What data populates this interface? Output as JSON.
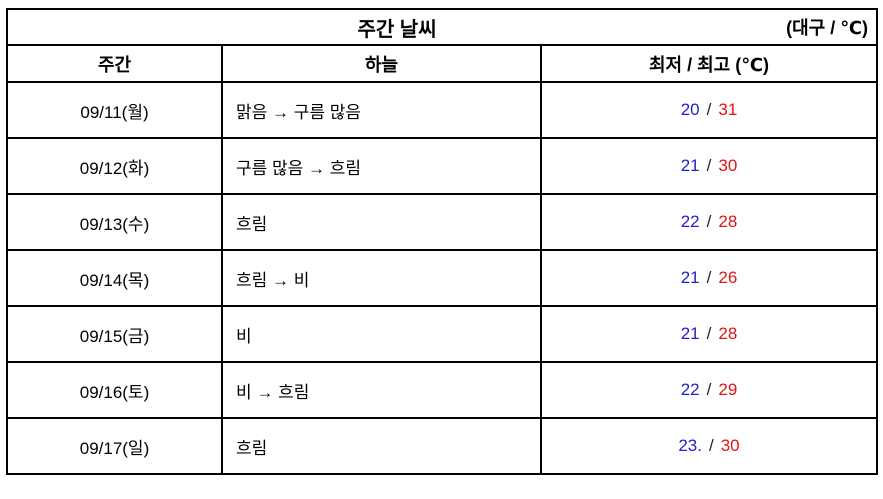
{
  "title_bar": {
    "title": "주간 날씨",
    "location_unit": "(대구 / ℃)"
  },
  "table": {
    "headers": [
      "주간",
      "하늘",
      "최저 / 최고 (℃)"
    ],
    "temp_separator": "/",
    "rows": [
      {
        "date": "09/11(월)",
        "sky": "맑음 → 구름 많음",
        "low": "20",
        "high": "31"
      },
      {
        "date": "09/12(화)",
        "sky": "구름 많음 → 흐림",
        "low": "21",
        "high": "30"
      },
      {
        "date": "09/13(수)",
        "sky": "흐림",
        "low": "22",
        "high": "28"
      },
      {
        "date": "09/14(목)",
        "sky": "흐림 → 비",
        "low": "21",
        "high": "26"
      },
      {
        "date": "09/15(금)",
        "sky": "비",
        "low": "21",
        "high": "28"
      },
      {
        "date": "09/16(토)",
        "sky": "비 → 흐림",
        "low": "22",
        "high": "29"
      },
      {
        "date": "09/17(일)",
        "sky": "흐림",
        "low": "23.",
        "high": "30"
      }
    ]
  },
  "colors": {
    "low": "#1f1fcb",
    "high": "#e11414",
    "separator": "#222222",
    "border": "#000000",
    "text": "#000000",
    "background": "#ffffff"
  }
}
